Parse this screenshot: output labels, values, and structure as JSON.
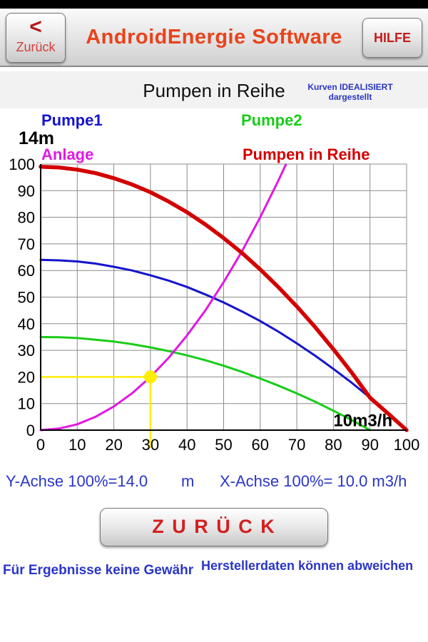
{
  "header": {
    "back_arrow": "<",
    "back_label": "Zurück",
    "title": "AndroidEnergie Software",
    "help_label": "HILFE"
  },
  "subheader": {
    "title": "Pumpen in Reihe",
    "note_line1": "Kurven IDEALISIERT",
    "note_line2": "dargestellt"
  },
  "legend": {
    "pumpe1": "Pumpe1",
    "pumpe2": "Pumpe2",
    "anlage": "Anlage",
    "reihe": "Pumpen in Reihe",
    "y_max_label": "14m"
  },
  "chart_data": {
    "type": "line",
    "title": "Pumpen in Reihe",
    "xlabel": "10m3/h",
    "ylabel": "14m",
    "xlim": [
      0,
      100
    ],
    "ylim": [
      0,
      100
    ],
    "x_ticks": [
      0,
      10,
      20,
      30,
      40,
      50,
      60,
      70,
      80,
      90,
      100
    ],
    "y_ticks": [
      0,
      10,
      20,
      30,
      40,
      50,
      60,
      70,
      80,
      90,
      100
    ],
    "grid": true,
    "grid_color": "#8c8c8c",
    "legend_position": "top",
    "series": [
      {
        "name": "Pumpe1",
        "color": "#1414cc",
        "width": 3,
        "x": [
          0,
          5,
          10,
          15,
          20,
          25,
          30,
          35,
          40,
          45,
          50,
          55,
          60,
          65,
          70,
          75,
          80,
          85,
          90,
          95,
          100
        ],
        "y": [
          64,
          63.8,
          63.4,
          62.6,
          61.4,
          60,
          58.2,
          56.2,
          53.8,
          51,
          48,
          44.6,
          41,
          37,
          32.6,
          28,
          23,
          17.8,
          12.2,
          6.2,
          0
        ]
      },
      {
        "name": "Pumpe2",
        "color": "#19cc19",
        "width": 3,
        "x": [
          0,
          5,
          10,
          15,
          20,
          25,
          30,
          35,
          40,
          45,
          50,
          55,
          60,
          65,
          70,
          75,
          80,
          85,
          90
        ],
        "y": [
          35,
          34.9,
          34.6,
          34,
          33.3,
          32.3,
          31.1,
          29.7,
          28.1,
          26.3,
          24.2,
          21.9,
          19.4,
          16.7,
          13.8,
          10.7,
          7.3,
          3.8,
          0
        ]
      },
      {
        "name": "Anlage",
        "color": "#e019e0",
        "width": 3,
        "x": [
          0,
          5,
          10,
          15,
          20,
          25,
          30,
          35,
          40,
          45,
          50,
          55,
          60,
          65,
          67
        ],
        "y": [
          0,
          0.6,
          2.2,
          5,
          8.9,
          13.9,
          20,
          27.2,
          35.6,
          45,
          55.6,
          67.2,
          80,
          93.9,
          99.8
        ]
      },
      {
        "name": "Pumpen in Reihe",
        "color": "#d40000",
        "width": 5.5,
        "x": [
          0,
          5,
          10,
          15,
          20,
          25,
          30,
          35,
          40,
          45,
          50,
          55,
          60,
          65,
          70,
          75,
          80,
          85,
          90,
          95,
          100
        ],
        "y": [
          99,
          98.7,
          97.9,
          96.6,
          94.7,
          92.3,
          89.4,
          85.9,
          81.9,
          77.3,
          72.2,
          66.6,
          60.4,
          53.7,
          46.5,
          38.7,
          30.4,
          21.6,
          12.2,
          6.2,
          0
        ]
      }
    ],
    "marker": {
      "x": 30,
      "y": 20,
      "color": "#ffee00",
      "radius": 9
    },
    "inner_label": {
      "text": "10m3/h",
      "x": 80,
      "y": 1.5
    }
  },
  "axis_info": {
    "y_text": "Y-Achse 100%=14.0",
    "y_unit": "m",
    "x_text": "X-Achse 100%= 10.0 m3/h"
  },
  "footer": {
    "zurueck_button": "Z U R Ü C K",
    "left_note": "Für Ergebnisse keine Gewähr",
    "right_note": "Herstellerdaten können abweichen"
  },
  "colors": {
    "title_accent": "#e8431c",
    "button_text": "#c41c1c",
    "note_blue": "#2a35c8",
    "pumpe1": "#1414cc",
    "pumpe2": "#19cc19",
    "anlage": "#e019e0",
    "reihe": "#d40000",
    "marker": "#ffee00"
  }
}
